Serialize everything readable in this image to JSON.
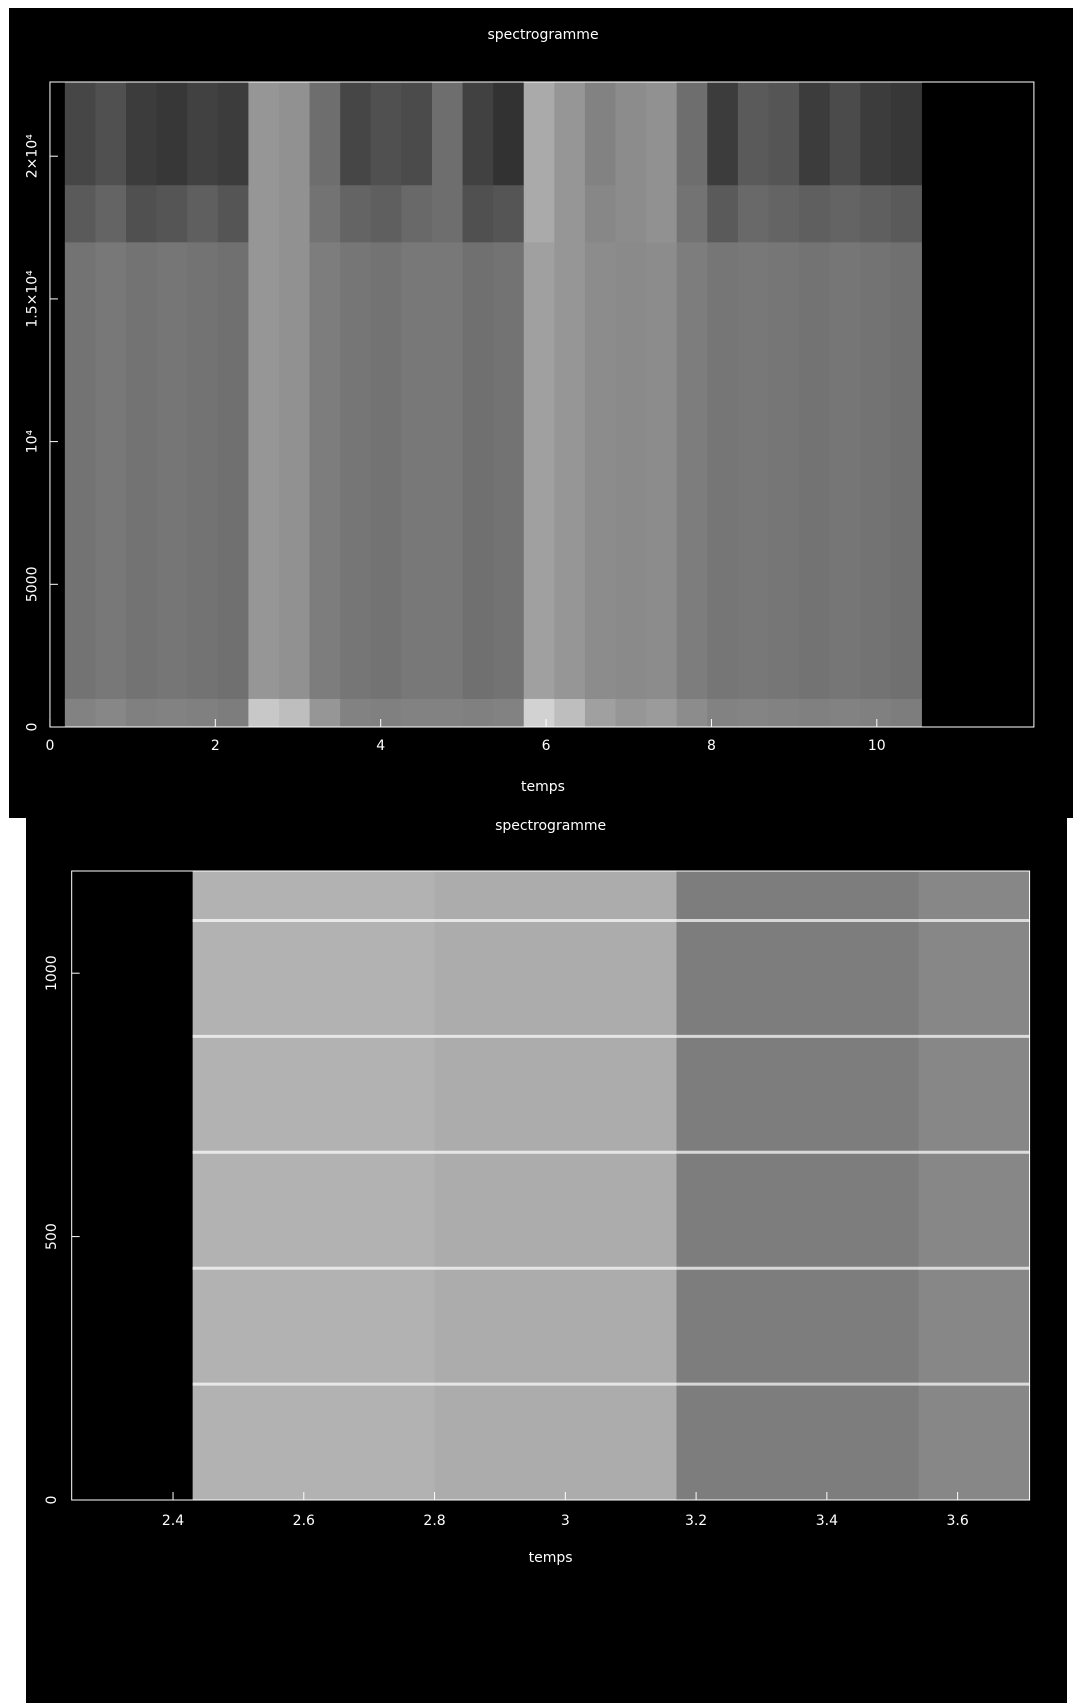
{
  "chart_data": [
    {
      "type": "heatmap",
      "title": "spectrogramme",
      "x_label": "temps",
      "xlim": [
        0,
        11.9
      ],
      "xticks": [
        0,
        2,
        4,
        6,
        8,
        10
      ],
      "ylim": [
        0,
        22600
      ],
      "yticks": [
        0,
        5000,
        {
          "value": 10000,
          "label": "10⁴"
        },
        {
          "value": 15000,
          "label": "1.5×10⁴"
        },
        {
          "value": 20000,
          "label": "2×10⁴"
        }
      ],
      "x_edges": [
        0.18,
        0.55,
        0.92,
        1.29,
        1.66,
        2.03,
        2.4,
        2.77,
        3.14,
        3.51,
        3.88,
        4.25,
        4.62,
        4.99,
        5.36,
        5.73,
        6.1,
        6.47,
        6.84,
        7.21,
        7.58,
        7.95,
        8.32,
        8.69,
        9.06,
        9.43,
        9.8,
        10.17,
        10.54
      ],
      "y_edges": [
        0,
        1000,
        17000,
        19000,
        22600
      ],
      "z": [
        [
          130,
          135,
          128,
          130,
          128,
          125,
          200,
          190,
          150,
          130,
          128,
          130,
          130,
          128,
          130,
          210,
          190,
          160,
          150,
          155,
          140,
          130,
          132,
          130,
          128,
          130,
          128,
          125
        ],
        [
          115,
          120,
          115,
          118,
          115,
          112,
          150,
          145,
          125,
          118,
          115,
          120,
          120,
          112,
          115,
          160,
          150,
          140,
          138,
          140,
          125,
          118,
          120,
          118,
          115,
          118,
          115,
          112
        ],
        [
          90,
          100,
          80,
          85,
          95,
          85,
          150,
          145,
          115,
          100,
          95,
          105,
          110,
          80,
          85,
          170,
          150,
          135,
          140,
          145,
          115,
          90,
          105,
          100,
          95,
          100,
          95,
          90
        ],
        [
          70,
          80,
          60,
          55,
          65,
          60,
          150,
          145,
          110,
          70,
          80,
          75,
          110,
          65,
          50,
          170,
          150,
          130,
          140,
          145,
          110,
          60,
          90,
          85,
          60,
          75,
          60,
          55
        ]
      ]
    },
    {
      "type": "heatmap",
      "title": "spectrogramme",
      "x_label": "temps",
      "xlim": [
        2.245,
        3.71
      ],
      "xticks": [
        2.4,
        2.6,
        2.8,
        3,
        3.2,
        3.4,
        3.6
      ],
      "ylim": [
        0,
        1194
      ],
      "yticks": [
        0,
        500,
        1000
      ],
      "x_edges": [
        2.43,
        2.8,
        3.17,
        3.54,
        3.71
      ],
      "y_edges": [
        0,
        1194
      ],
      "z": [
        [
          178,
          172,
          125,
          135
        ]
      ],
      "lines": [
        220,
        440,
        660,
        880,
        1100
      ]
    }
  ]
}
